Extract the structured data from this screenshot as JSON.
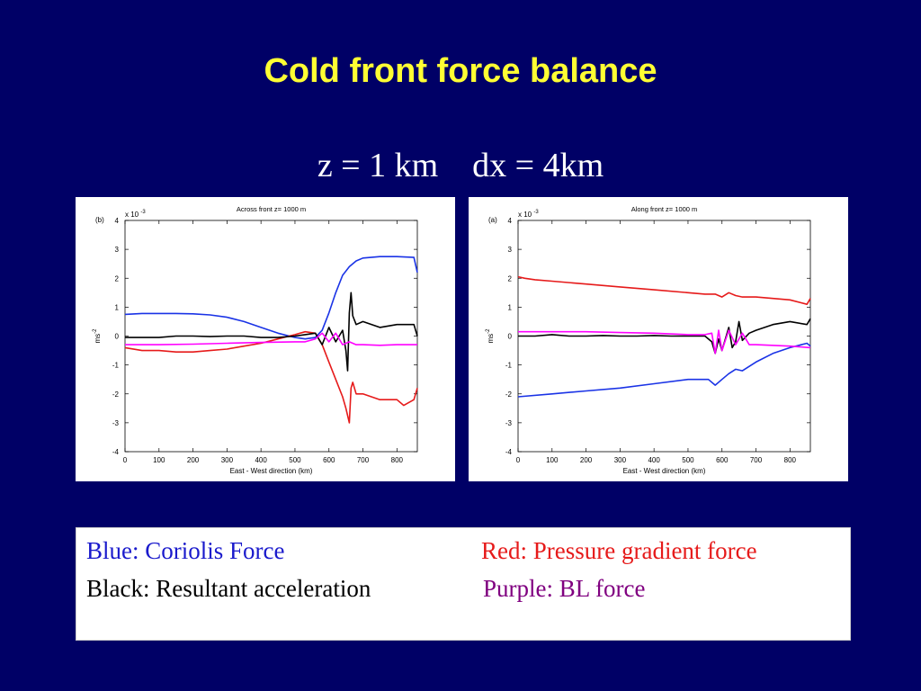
{
  "slide": {
    "title": "Cold front force balance",
    "subtitle_z": "z = 1 km",
    "subtitle_dx": "dx = 4km"
  },
  "legend": {
    "blue": "Blue: Coriolis Force",
    "red": "Red: Pressure gradient force",
    "black": "Black: Resultant acceleration",
    "purple": "Purple: BL force"
  },
  "colors": {
    "background": "#000066",
    "title": "#ffff33",
    "coriolis": "#1a33e6",
    "pressure": "#e61a1a",
    "resultant": "#000000",
    "bl": "#ff00ff"
  },
  "chart_data": [
    {
      "type": "line",
      "panel_label": "(b)",
      "title": "Across front z= 1000 m",
      "xlabel": "East - West direction (km)",
      "ylabel": "ms-2",
      "exponent_label": "x 10",
      "exponent": "-3",
      "xlim": [
        0,
        860
      ],
      "ylim": [
        -4,
        4
      ],
      "xticks": [
        0,
        100,
        200,
        300,
        400,
        500,
        600,
        700,
        800
      ],
      "yticks": [
        -4,
        -3,
        -2,
        -1,
        0,
        1,
        2,
        3,
        4
      ],
      "series": [
        {
          "color": "coriolis",
          "x": [
            0,
            50,
            100,
            150,
            200,
            250,
            300,
            350,
            400,
            450,
            500,
            530,
            560,
            580,
            600,
            620,
            640,
            660,
            680,
            700,
            750,
            800,
            850,
            860
          ],
          "y": [
            0.75,
            0.78,
            0.78,
            0.78,
            0.77,
            0.73,
            0.65,
            0.5,
            0.3,
            0.1,
            -0.05,
            -0.1,
            -0.05,
            0.2,
            0.8,
            1.5,
            2.1,
            2.4,
            2.6,
            2.7,
            2.75,
            2.75,
            2.72,
            2.2
          ]
        },
        {
          "color": "pressure",
          "x": [
            0,
            50,
            100,
            150,
            200,
            250,
            300,
            350,
            400,
            450,
            500,
            530,
            560,
            580,
            600,
            620,
            640,
            650,
            660,
            665,
            670,
            680,
            700,
            750,
            800,
            820,
            850,
            860
          ],
          "y": [
            -0.4,
            -0.5,
            -0.5,
            -0.55,
            -0.55,
            -0.5,
            -0.45,
            -0.35,
            -0.25,
            -0.1,
            0.05,
            0.15,
            0.1,
            -0.3,
            -0.9,
            -1.5,
            -2.1,
            -2.5,
            -3.0,
            -1.8,
            -1.6,
            -2.0,
            -2.0,
            -2.2,
            -2.2,
            -2.4,
            -2.2,
            -1.8
          ]
        },
        {
          "color": "resultant",
          "x": [
            0,
            50,
            100,
            150,
            200,
            250,
            300,
            350,
            400,
            450,
            500,
            530,
            560,
            580,
            600,
            620,
            640,
            650,
            655,
            660,
            665,
            670,
            680,
            700,
            750,
            800,
            850,
            860
          ],
          "y": [
            -0.05,
            -0.05,
            -0.05,
            0.0,
            0.0,
            -0.02,
            0.0,
            0.0,
            -0.05,
            -0.05,
            0.0,
            0.05,
            0.1,
            -0.3,
            0.3,
            -0.2,
            0.2,
            -0.5,
            -1.2,
            0.8,
            1.5,
            0.7,
            0.4,
            0.5,
            0.3,
            0.4,
            0.4,
            0.0
          ]
        },
        {
          "color": "bl",
          "x": [
            0,
            100,
            200,
            300,
            400,
            500,
            530,
            560,
            580,
            600,
            620,
            640,
            660,
            680,
            700,
            750,
            800,
            860
          ],
          "y": [
            -0.3,
            -0.3,
            -0.28,
            -0.25,
            -0.22,
            -0.2,
            -0.2,
            -0.1,
            0.1,
            -0.2,
            0.1,
            -0.3,
            -0.2,
            -0.3,
            -0.3,
            -0.32,
            -0.3,
            -0.3
          ]
        }
      ]
    },
    {
      "type": "line",
      "panel_label": "(a)",
      "title": "Along front z= 1000 m",
      "xlabel": "East - West direction (km)",
      "ylabel": "ms-2",
      "exponent_label": "x 10",
      "exponent": "-3",
      "xlim": [
        0,
        860
      ],
      "ylim": [
        -4,
        4
      ],
      "xticks": [
        0,
        100,
        200,
        300,
        400,
        500,
        600,
        700,
        800
      ],
      "yticks": [
        -4,
        -3,
        -2,
        -1,
        0,
        1,
        2,
        3,
        4
      ],
      "series": [
        {
          "color": "pressure",
          "x": [
            0,
            20,
            50,
            100,
            200,
            300,
            400,
            500,
            550,
            580,
            600,
            620,
            640,
            660,
            700,
            750,
            800,
            850,
            860
          ],
          "y": [
            2.05,
            2.0,
            1.95,
            1.9,
            1.8,
            1.7,
            1.6,
            1.5,
            1.45,
            1.45,
            1.35,
            1.5,
            1.4,
            1.35,
            1.35,
            1.3,
            1.25,
            1.1,
            1.3
          ]
        },
        {
          "color": "coriolis",
          "x": [
            0,
            100,
            200,
            300,
            400,
            500,
            560,
            580,
            600,
            620,
            640,
            660,
            700,
            750,
            800,
            850,
            860
          ],
          "y": [
            -2.1,
            -2.0,
            -1.9,
            -1.8,
            -1.65,
            -1.5,
            -1.5,
            -1.7,
            -1.5,
            -1.3,
            -1.15,
            -1.2,
            -0.9,
            -0.6,
            -0.4,
            -0.25,
            -0.35
          ]
        },
        {
          "color": "resultant",
          "x": [
            0,
            50,
            100,
            150,
            200,
            250,
            300,
            350,
            400,
            450,
            500,
            550,
            570,
            580,
            590,
            600,
            620,
            630,
            640,
            650,
            660,
            680,
            700,
            750,
            800,
            850,
            860
          ],
          "y": [
            0.0,
            0.0,
            0.05,
            0.0,
            0.0,
            0.02,
            0.0,
            0.0,
            0.02,
            0.0,
            0.0,
            0.0,
            -0.2,
            -0.6,
            -0.1,
            -0.5,
            0.3,
            -0.4,
            -0.2,
            0.5,
            -0.15,
            0.1,
            0.2,
            0.4,
            0.5,
            0.4,
            0.6
          ]
        },
        {
          "color": "bl",
          "x": [
            0,
            100,
            200,
            300,
            400,
            500,
            550,
            570,
            580,
            590,
            600,
            620,
            640,
            660,
            680,
            700,
            800,
            860
          ],
          "y": [
            0.15,
            0.15,
            0.15,
            0.12,
            0.1,
            0.05,
            0.05,
            0.1,
            -0.6,
            0.2,
            -0.5,
            0.2,
            -0.3,
            0.1,
            -0.3,
            -0.3,
            -0.35,
            -0.4
          ]
        }
      ]
    }
  ]
}
